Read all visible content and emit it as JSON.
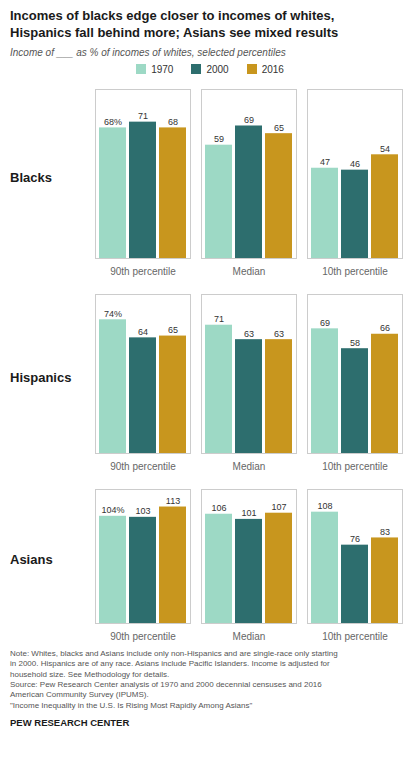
{
  "title": "Incomes of blacks edge closer to incomes of whites,\nHispanics fall behind more; Asians see mixed results",
  "subtitle": "Income of ___ as % of incomes of whites, selected percentiles",
  "annotations": [
    "Note:  Whites, blacks and Asians include only non-Hispanics and are single-race only starting\nin 2000.  Hispanics are of any race. Asians include Pacific Islanders. Income is adjusted for\nhousehold size. See Methodology for details.\nSource: Pew Research Center analysis of 1970 and 2000 decennial censuses and 2016\nAmerican Community Survey (IPUMS).\n\"Income Inequality in the U.S. Is Rising Most Rapidly Among Asians\"",
    "PEW RESEARCH CENTER"
  ],
  "chart_data": [
    {
      "type": "bar",
      "title": "Blacks",
      "categories": [
        "90th percentile",
        "Median",
        "10th percentile"
      ],
      "series": [
        {
          "name": "1970",
          "color": "#9dd9c5",
          "values": [
            68,
            59,
            47
          ],
          "value_labels": [
            "68%",
            "59",
            "47"
          ]
        },
        {
          "name": "2000",
          "color": "#2d6e6e",
          "values": [
            71,
            69,
            46
          ],
          "value_labels": [
            "71",
            "69",
            "46"
          ]
        },
        {
          "name": "2016",
          "color": "#c8961e",
          "values": [
            68,
            65,
            54
          ],
          "value_labels": [
            "68",
            "65",
            "54"
          ]
        }
      ],
      "ylim": [
        0,
        88
      ],
      "data_labels": true,
      "tick_labels": "x",
      "legend": "top"
    },
    {
      "type": "bar",
      "title": "Hispanics",
      "categories": [
        "90th percentile",
        "Median",
        "10th percentile"
      ],
      "series": [
        {
          "name": "1970",
          "color": "#9dd9c5",
          "values": [
            74,
            71,
            69
          ],
          "value_labels": [
            "74%",
            "71",
            "69"
          ]
        },
        {
          "name": "2000",
          "color": "#2d6e6e",
          "values": [
            64,
            63,
            58
          ],
          "value_labels": [
            "64",
            "63",
            "58"
          ]
        },
        {
          "name": "2016",
          "color": "#c8961e",
          "values": [
            65,
            63,
            66
          ],
          "value_labels": [
            "65",
            "63",
            "66"
          ]
        }
      ],
      "ylim": [
        0,
        88
      ],
      "data_labels": true,
      "tick_labels": "x"
    },
    {
      "type": "bar",
      "title": "Asians",
      "categories": [
        "90th percentile",
        "Median",
        "10th percentile"
      ],
      "series": [
        {
          "name": "1970",
          "color": "#9dd9c5",
          "values": [
            104,
            106,
            108
          ],
          "value_labels": [
            "104%",
            "106",
            "108"
          ]
        },
        {
          "name": "2000",
          "color": "#2d6e6e",
          "values": [
            103,
            101,
            76
          ],
          "value_labels": [
            "103",
            "101",
            "76"
          ]
        },
        {
          "name": "2016",
          "color": "#c8961e",
          "values": [
            113,
            107,
            83
          ],
          "value_labels": [
            "113",
            "107",
            "83"
          ]
        }
      ],
      "ylim": [
        0,
        130
      ],
      "data_labels": true,
      "tick_labels": "x"
    }
  ]
}
